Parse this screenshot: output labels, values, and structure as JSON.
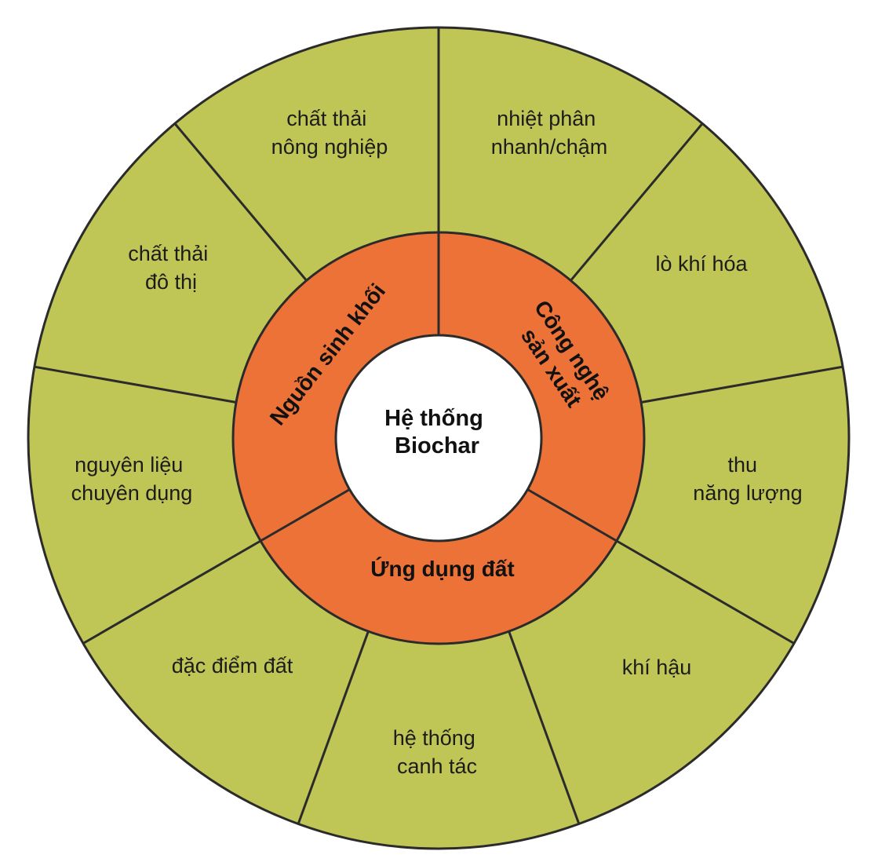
{
  "colors": {
    "outer_ring": "#c0c655",
    "middle_ring": "#ec7238",
    "center": "#ffffff",
    "stroke": "#2b2b2b"
  },
  "center": {
    "lines": [
      "Hệ thống",
      "Biochar"
    ]
  },
  "middle_ring": [
    {
      "id": "biomass",
      "lines": [
        "Nguồn sinh khối"
      ]
    },
    {
      "id": "technology",
      "lines": [
        "Công nghệ",
        "sản xuất"
      ]
    },
    {
      "id": "soil",
      "lines": [
        "Ứng dụng đất"
      ]
    }
  ],
  "outer_ring": [
    {
      "id": "agri-waste",
      "lines": [
        "chất thải",
        "nông nghiệp"
      ]
    },
    {
      "id": "pyrolysis",
      "lines": [
        "nhiệt phân",
        "nhanh/chậm"
      ]
    },
    {
      "id": "gasifier",
      "lines": [
        "lò khí hóa"
      ]
    },
    {
      "id": "energy",
      "lines": [
        "thu",
        "năng lượng"
      ]
    },
    {
      "id": "climate",
      "lines": [
        "khí hậu"
      ]
    },
    {
      "id": "farming",
      "lines": [
        "hệ thống",
        "canh tác"
      ]
    },
    {
      "id": "soil-traits",
      "lines": [
        "đặc điểm đất"
      ]
    },
    {
      "id": "dedicated-feedstock",
      "lines": [
        "nguyên liệu",
        "chuyên dụng"
      ]
    },
    {
      "id": "urban-waste",
      "lines": [
        "chất thải",
        "đô thị"
      ]
    }
  ]
}
